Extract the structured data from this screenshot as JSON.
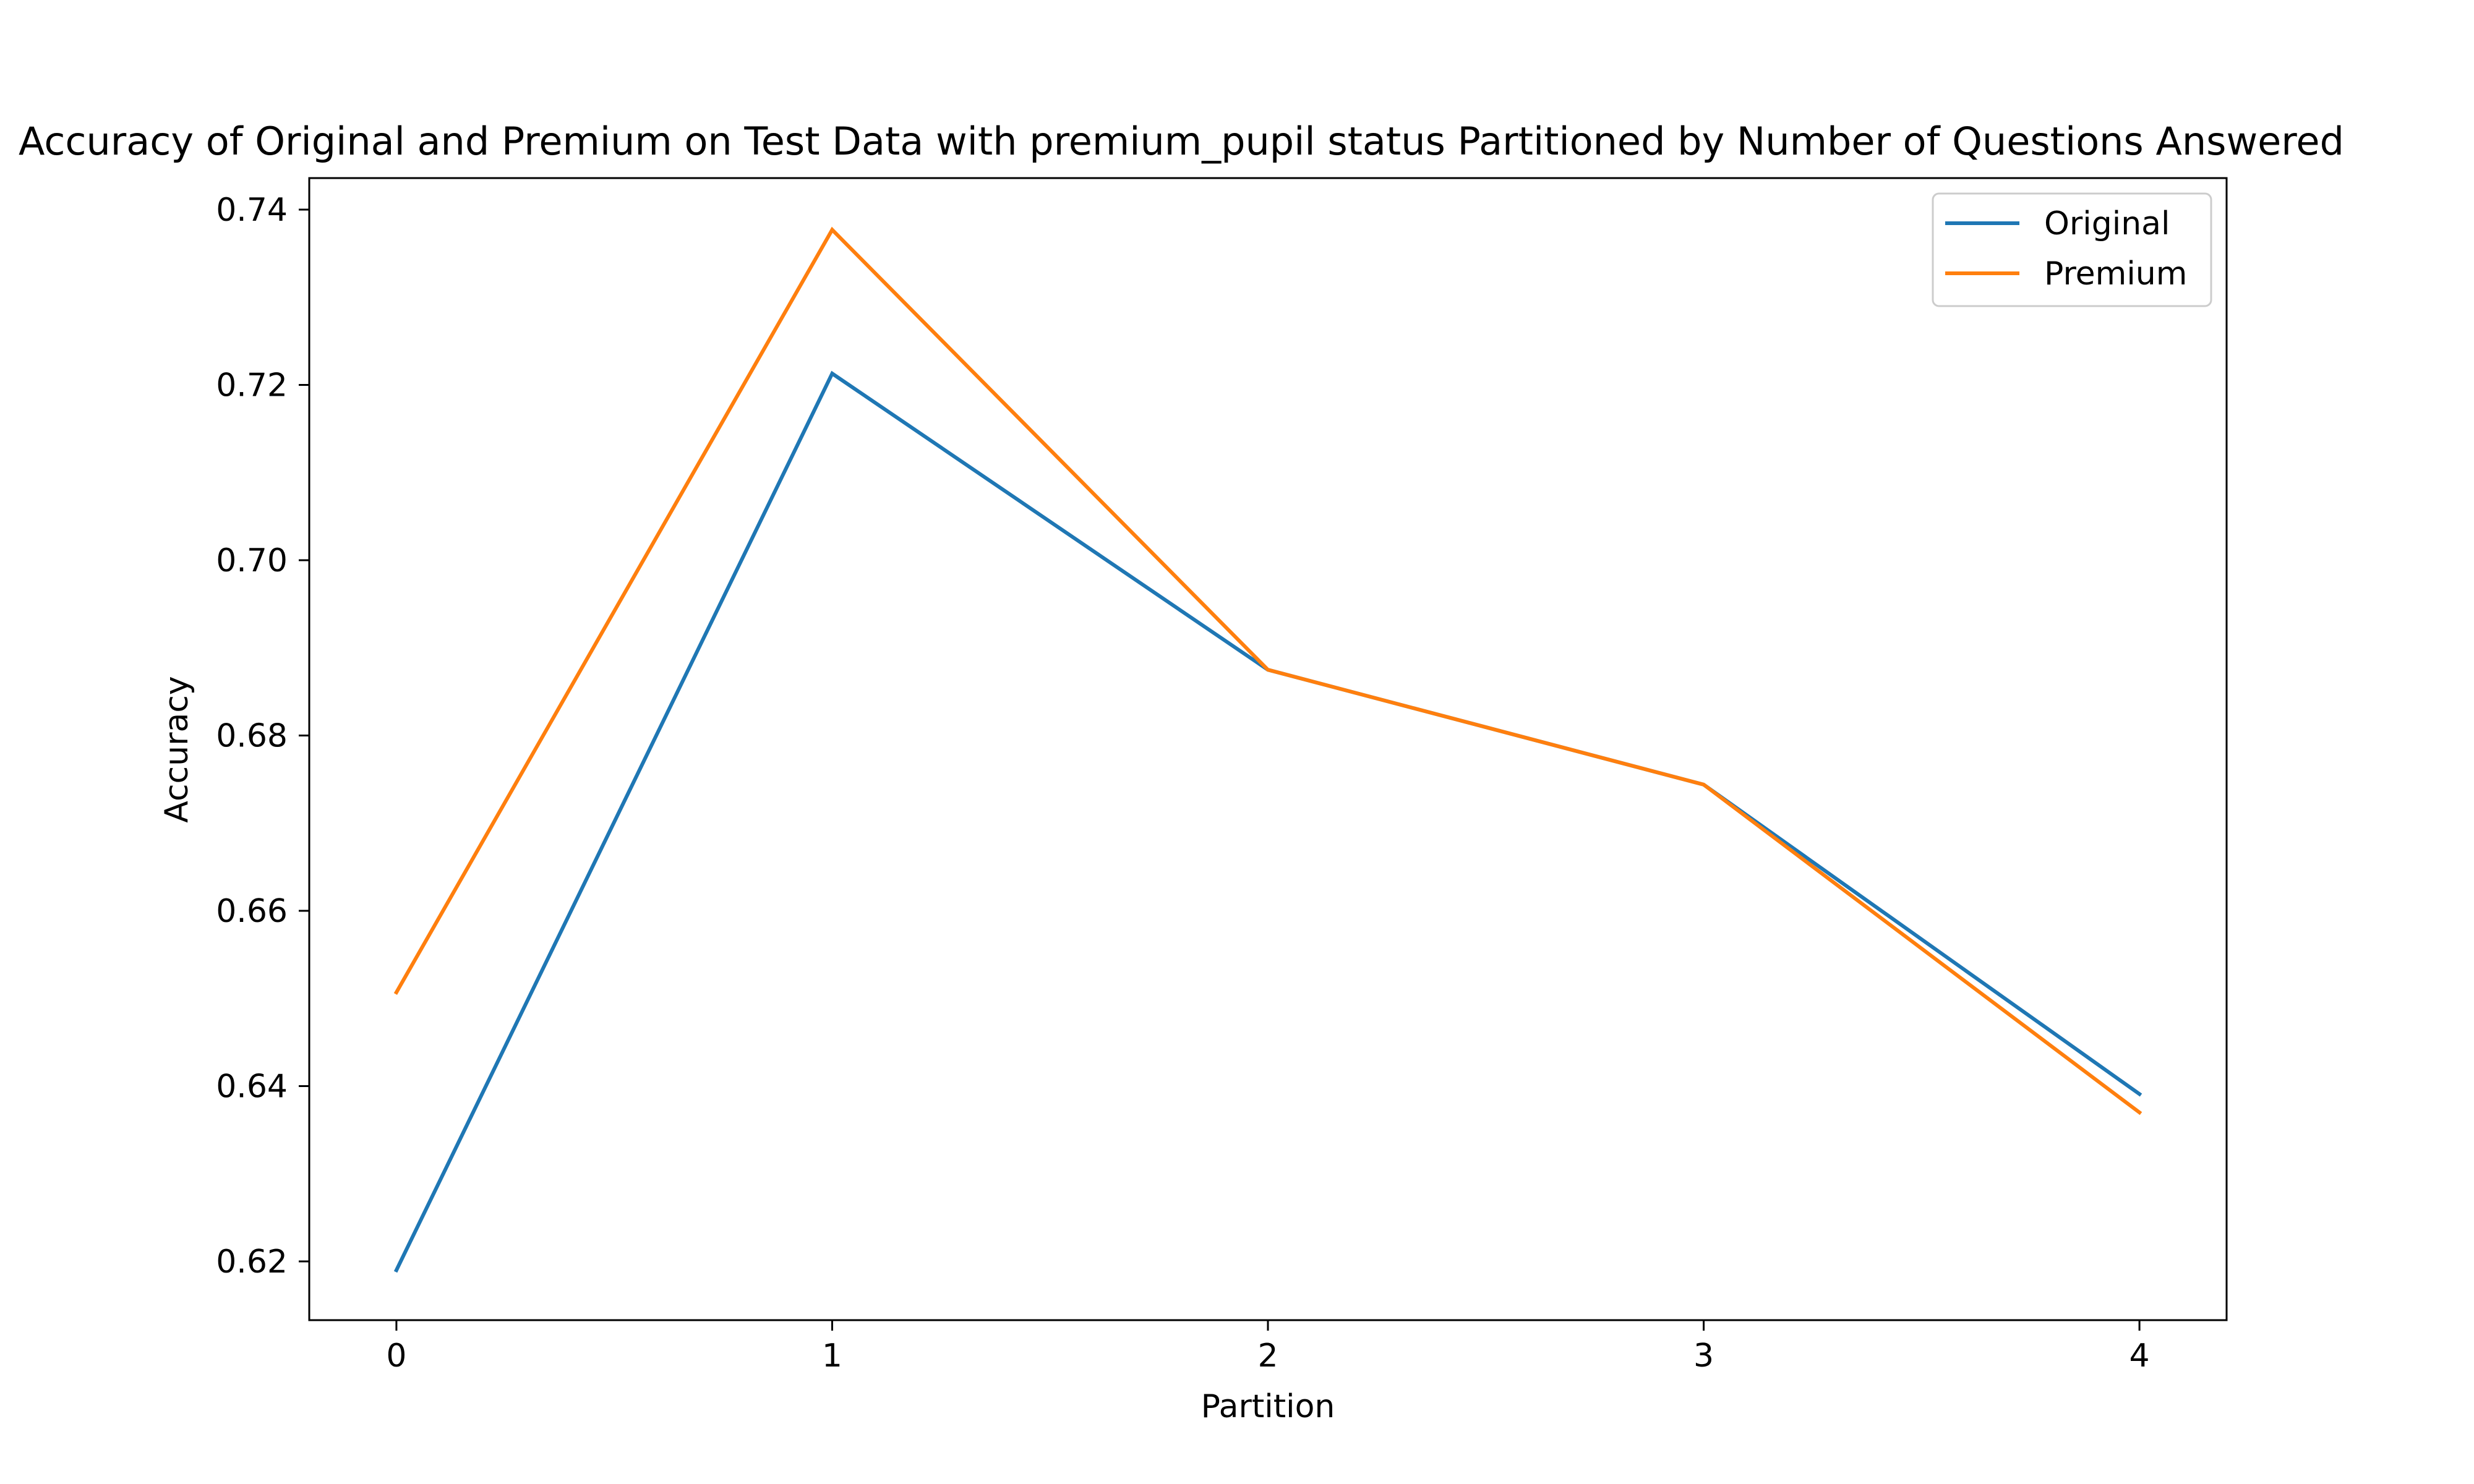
{
  "chart_data": {
    "type": "line",
    "title": "Accuracy of Original and Premium on Test Data with premium_pupil status Partitioned by Number of Questions Answered",
    "xlabel": "Partition",
    "ylabel": "Accuracy",
    "x": [
      0,
      1,
      2,
      3,
      4
    ],
    "xticks": [
      "0",
      "1",
      "2",
      "3",
      "4"
    ],
    "yticks": [
      "0.62",
      "0.64",
      "0.66",
      "0.68",
      "0.70",
      "0.72",
      "0.74"
    ],
    "xlim": [
      -0.2,
      4.2
    ],
    "ylim": [
      0.6133,
      0.7436
    ],
    "grid": false,
    "legend_position": "upper right",
    "series": [
      {
        "name": "Original",
        "color": "#1f77b4",
        "values": [
          0.619,
          0.7213,
          0.6875,
          0.6744,
          0.6391
        ]
      },
      {
        "name": "Premium",
        "color": "#ff7f0e",
        "values": [
          0.6507,
          0.7377,
          0.6875,
          0.6744,
          0.637
        ]
      }
    ]
  }
}
